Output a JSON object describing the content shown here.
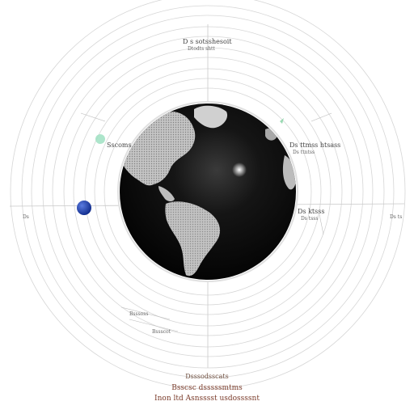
{
  "labels": {
    "top_line_1": "D s sotsshesoit",
    "top_line_2": "Dtodts shtt",
    "left_orbit": "Sscoms",
    "right_upper_1": "Ds ttmss htsass",
    "right_upper_2": "Ds ttntss",
    "right_mid_1": "Ds ktsss",
    "right_mid_2": "Ds tsss",
    "far_left": "Ds",
    "far_right": "Ds ts",
    "lower_left_1": "Bsssoss",
    "lower_left_2": "Bssscot",
    "caption_1": "Dsssodsscats",
    "caption_2": "Bsscsc dsssssmtms",
    "caption_3": "Inon ltd Asnsssst usdossssnt"
  },
  "colors": {
    "ring_stroke": "#d4d4d4",
    "globe_dark": "#050505",
    "land": "#b9b9b9",
    "orbit_planet_blue": "#1f3fae",
    "orbit_planet_green": "#8fd9b8",
    "caption": "#7a3b2a"
  },
  "icons": {
    "globe": "earth-globe-icon",
    "blue_planet": "blue-planet-icon",
    "green_planet": "green-planet-icon"
  }
}
